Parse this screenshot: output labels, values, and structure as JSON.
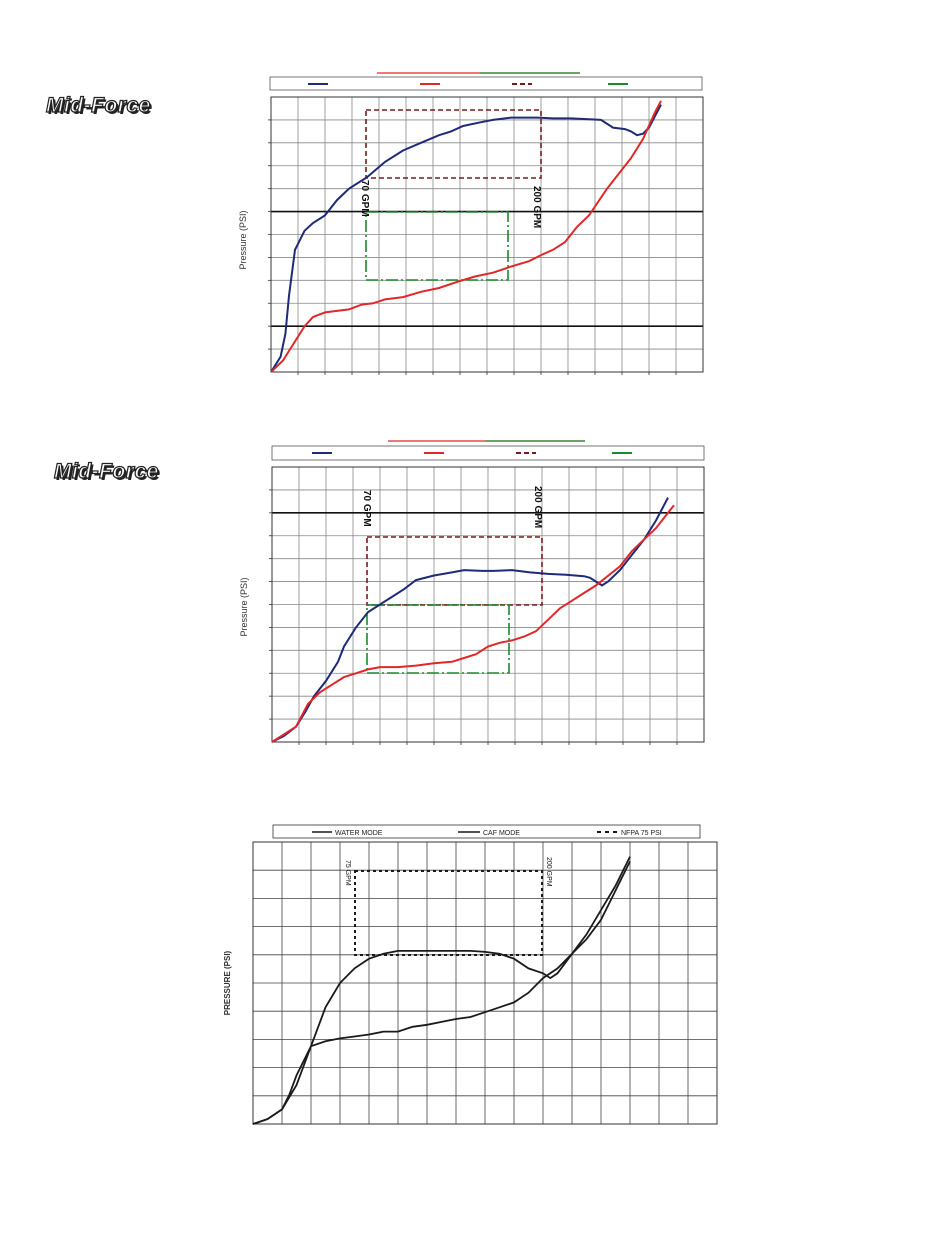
{
  "logos": {
    "brand_top": "Mid-Force",
    "brand_middle": "Mid-Force"
  },
  "chart_data": [
    {
      "type": "line",
      "ylabel": "Pressure (PSI)",
      "annotations": [
        "70 GPM",
        "200 GPM"
      ],
      "colors": {
        "series_a": "#1f2a78",
        "series_b": "#e02828",
        "box_a": "#7a1a1a",
        "box_b": "#1a8a2a"
      },
      "series": [
        {
          "x": [
            0,
            8,
            12,
            15,
            20,
            28,
            35,
            45,
            55,
            65,
            80,
            95,
            110,
            125,
            140,
            150,
            160,
            175,
            185,
            200,
            215,
            222,
            235,
            250,
            265,
            275,
            285,
            295,
            300,
            305,
            310,
            315,
            325
          ],
          "y": [
            0,
            20,
            50,
            100,
            160,
            185,
            195,
            205,
            225,
            240,
            255,
            275,
            290,
            300,
            310,
            315,
            322,
            327,
            330,
            333,
            333,
            333,
            332,
            332,
            331,
            330,
            320,
            318,
            315,
            310,
            312,
            320,
            350
          ]
        },
        {
          "x": [
            0,
            10,
            20,
            28,
            35,
            45,
            55,
            65,
            75,
            85,
            95,
            110,
            125,
            140,
            155,
            170,
            185,
            200,
            215,
            225,
            235,
            245,
            255,
            265,
            280,
            300,
            310,
            320,
            325
          ],
          "y": [
            0,
            15,
            40,
            60,
            72,
            78,
            80,
            82,
            88,
            90,
            95,
            98,
            105,
            110,
            118,
            125,
            130,
            138,
            145,
            153,
            160,
            170,
            190,
            205,
            240,
            280,
            305,
            340,
            355
          ]
        }
      ]
    },
    {
      "type": "line",
      "ylabel": "Pressure (PSI)",
      "annotations": [
        "70 GPM",
        "200 GPM"
      ],
      "colors": {
        "series_a": "#1f2a78",
        "series_b": "#e02828",
        "box_a": "#7a1a1a",
        "box_b": "#1a8a2a"
      },
      "series": [
        {
          "x": [
            0,
            10,
            20,
            28,
            35,
            45,
            55,
            60,
            70,
            80,
            90,
            100,
            110,
            120,
            135,
            150,
            160,
            175,
            185,
            200,
            215,
            230,
            245,
            260,
            265,
            270,
            275,
            280,
            290,
            300,
            310,
            320,
            330
          ],
          "y": [
            0,
            8,
            20,
            40,
            60,
            80,
            105,
            125,
            150,
            170,
            180,
            190,
            200,
            212,
            218,
            222,
            225,
            224,
            224,
            225,
            222,
            220,
            219,
            217,
            215,
            210,
            205,
            210,
            225,
            245,
            265,
            290,
            320
          ]
        },
        {
          "x": [
            0,
            10,
            20,
            25,
            30,
            40,
            50,
            60,
            70,
            80,
            90,
            105,
            120,
            135,
            150,
            160,
            170,
            180,
            190,
            200,
            210,
            220,
            230,
            240,
            250,
            260,
            270,
            290,
            300,
            320,
            335
          ],
          "y": [
            0,
            10,
            20,
            35,
            50,
            65,
            75,
            85,
            90,
            95,
            98,
            98,
            100,
            103,
            105,
            110,
            115,
            125,
            130,
            133,
            138,
            145,
            160,
            175,
            185,
            195,
            205,
            230,
            250,
            280,
            310
          ]
        }
      ]
    },
    {
      "type": "line",
      "ylabel": "PRESSURE (PSI)",
      "legend_position": "top",
      "legend": [
        "WATER MODE",
        "CAF MODE",
        "NFPA 75 PSI"
      ],
      "annotations": [
        "75 GPM",
        "200 GPM"
      ],
      "colors": {
        "series_a": "#1a1a1a",
        "series_b": "#1a1a1a",
        "box": "#1a1a1a"
      },
      "series": [
        {
          "name": "WATER MODE",
          "x": [
            0,
            10,
            20,
            30,
            40,
            50,
            60,
            70,
            80,
            90,
            100,
            110,
            120,
            130,
            140,
            150,
            160,
            170,
            180,
            190,
            200,
            205,
            210,
            220,
            230,
            240,
            250,
            260
          ],
          "y": [
            0,
            5,
            15,
            40,
            80,
            120,
            145,
            160,
            170,
            175,
            178,
            178,
            178,
            178,
            178,
            178,
            177,
            175,
            170,
            160,
            155,
            150,
            155,
            175,
            195,
            220,
            245,
            275
          ]
        },
        {
          "name": "CAF MODE",
          "x": [
            0,
            10,
            20,
            25,
            30,
            40,
            50,
            60,
            70,
            80,
            90,
            100,
            110,
            120,
            130,
            140,
            150,
            160,
            170,
            180,
            190,
            200,
            210,
            220,
            230,
            240,
            250,
            260
          ],
          "y": [
            0,
            5,
            15,
            30,
            50,
            80,
            85,
            88,
            90,
            92,
            95,
            95,
            100,
            102,
            105,
            108,
            110,
            115,
            120,
            125,
            135,
            150,
            160,
            175,
            190,
            210,
            240,
            270
          ]
        }
      ]
    }
  ]
}
